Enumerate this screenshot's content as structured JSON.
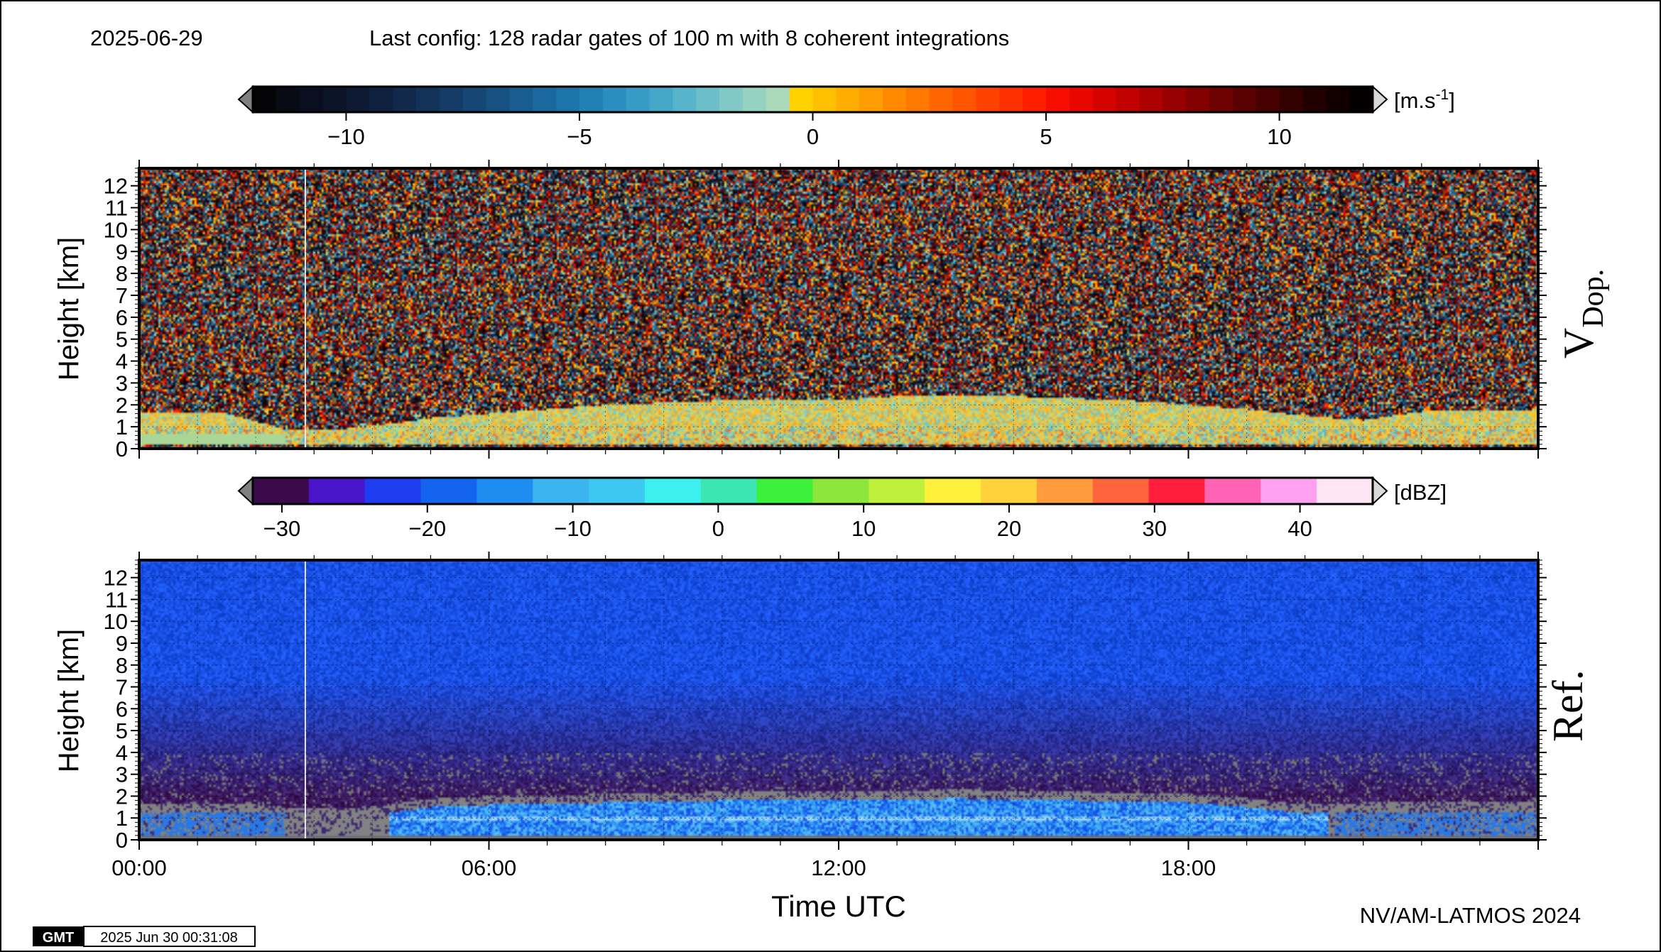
{
  "header": {
    "date": "2025-06-29",
    "config": "Last config: 128 radar gates of 100 m with 8 coherent integrations"
  },
  "footer": {
    "gmt_logo": "GMT",
    "timestamp": "2025 Jun 30 00:31:08",
    "credit": "NV/AM-LATMOS 2024"
  },
  "chart_data": [
    {
      "type": "heatmap",
      "title": "",
      "panel_label_main": "V",
      "panel_label_sub": "Dop.",
      "ylabel": "Height [km]",
      "xlabel": "",
      "ylim": [
        0,
        12.8
      ],
      "yticks": [
        0,
        1,
        2,
        3,
        4,
        5,
        6,
        7,
        8,
        9,
        10,
        11,
        12
      ],
      "xlim": [
        0,
        24
      ],
      "grid": true,
      "colorbar": {
        "unit_base": "[m.s",
        "unit_exp": "-1",
        "unit_close": "]",
        "range": [
          -12,
          12
        ],
        "ticks": [
          -10,
          -5,
          0,
          5,
          10
        ],
        "tick_labels": [
          "−10",
          "−5",
          "0",
          "5",
          "10"
        ],
        "colors": [
          "#050508",
          "#080a14",
          "#0a0f1f",
          "#0c1428",
          "#0e1a33",
          "#0f213f",
          "#11294b",
          "#123258",
          "#143c66",
          "#154674",
          "#165182",
          "#185c90",
          "#1a689d",
          "#1d74a9",
          "#2281b4",
          "#2b8ebe",
          "#379bc5",
          "#46a8c9",
          "#58b4ca",
          "#6cbfc8",
          "#80c9c4",
          "#95d2bf",
          "#aadaba",
          "#ffd200",
          "#ffc000",
          "#ffae00",
          "#ff9c00",
          "#ff8a00",
          "#ff7800",
          "#ff6600",
          "#ff5400",
          "#ff4200",
          "#ff3000",
          "#ff1e00",
          "#f70e00",
          "#e80600",
          "#d50300",
          "#c10200",
          "#ac0100",
          "#970000",
          "#820000",
          "#6d0000",
          "#590000",
          "#460000",
          "#330000",
          "#220000",
          "#120000",
          "#050000"
        ]
      },
      "background_color": "#f1a23a",
      "boundary_layer_km": [
        [
          0,
          1.7
        ],
        [
          1.5,
          1.6
        ],
        [
          2.5,
          0.9
        ],
        [
          3.5,
          0.9
        ],
        [
          4.5,
          1.2
        ],
        [
          5,
          1.4
        ],
        [
          6,
          1.6
        ],
        [
          7,
          1.8
        ],
        [
          8,
          2.0
        ],
        [
          9,
          2.1
        ],
        [
          10,
          2.2
        ],
        [
          11,
          2.2
        ],
        [
          12,
          2.2
        ],
        [
          13,
          2.4
        ],
        [
          14,
          2.4
        ],
        [
          15,
          2.4
        ],
        [
          16,
          2.3
        ],
        [
          17,
          2.2
        ],
        [
          18,
          2.0
        ],
        [
          19,
          1.8
        ],
        [
          20,
          1.5
        ],
        [
          21,
          1.3
        ],
        [
          22,
          1.7
        ],
        [
          24,
          1.8
        ]
      ]
    },
    {
      "type": "heatmap",
      "title": "",
      "panel_label_main": "Ref.",
      "ylabel": "Height [km]",
      "xlabel": "Time UTC",
      "ylim": [
        0,
        12.8
      ],
      "yticks": [
        0,
        1,
        2,
        3,
        4,
        5,
        6,
        7,
        8,
        9,
        10,
        11,
        12
      ],
      "xlim": [
        0,
        24
      ],
      "xticks": [
        0,
        6,
        12,
        18
      ],
      "xtick_labels": [
        "00:00",
        "06:00",
        "12:00",
        "18:00"
      ],
      "grid": true,
      "colorbar": {
        "unit_base": "[dBZ]",
        "range": [
          -32,
          45
        ],
        "ticks": [
          -30,
          -20,
          -10,
          0,
          10,
          20,
          30,
          40
        ],
        "tick_labels": [
          "−30",
          "−20",
          "−10",
          "0",
          "10",
          "20",
          "30",
          "40"
        ],
        "colors": [
          "#3a0a4a",
          "#4a14c8",
          "#1e3cf0",
          "#1464f0",
          "#1e8cf0",
          "#3cb4f0",
          "#3cc8f0",
          "#3cf0f0",
          "#3ce6b4",
          "#3cf03c",
          "#8ce63c",
          "#bef03c",
          "#fff03c",
          "#ffd23c",
          "#ff9b3c",
          "#ff643c",
          "#ff1e3c",
          "#ff64b4",
          "#ffa0f0",
          "#ffe6f5"
        ]
      },
      "boundary_layer_km": [
        [
          0,
          1.2
        ],
        [
          2,
          1.2
        ],
        [
          3,
          1.0
        ],
        [
          4,
          1.1
        ],
        [
          4.5,
          1.3
        ],
        [
          5,
          1.5
        ],
        [
          6,
          1.6
        ],
        [
          8,
          1.7
        ],
        [
          10,
          1.8
        ],
        [
          12,
          1.8
        ],
        [
          14,
          1.9
        ],
        [
          16,
          1.8
        ],
        [
          18,
          1.7
        ],
        [
          19,
          1.5
        ],
        [
          20,
          1.2
        ],
        [
          21,
          1.3
        ],
        [
          24,
          1.3
        ]
      ]
    }
  ]
}
